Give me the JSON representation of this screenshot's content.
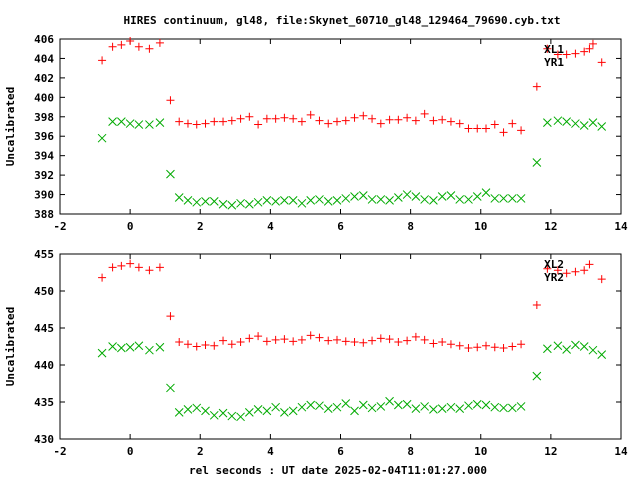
{
  "figure": {
    "title": "HIRES continuum, gl48, file:Skynet_60710_gl48_129464_79690.cyb.txt",
    "xlabel": "rel seconds : UT date 2025-02-04T11:01:27.000"
  },
  "chart_data": [
    {
      "type": "scatter",
      "ylabel": "Uncalibrated",
      "xlim": [
        -2,
        14
      ],
      "ylim": [
        388,
        406
      ],
      "xticks": [
        "-2",
        "0",
        "2",
        "4",
        "6",
        "8",
        "10",
        "12",
        "14"
      ],
      "yticks": [
        "388",
        "390",
        "392",
        "394",
        "396",
        "398",
        "400",
        "402",
        "404",
        "406"
      ],
      "grid": false,
      "legend_position": "top-right",
      "series": [
        {
          "name": "XL1",
          "marker": "plus",
          "color": "#ff0000",
          "x": [
            -0.8,
            -0.5,
            -0.25,
            0.0,
            0.25,
            0.55,
            0.85,
            1.15,
            1.4,
            1.65,
            1.9,
            2.15,
            2.4,
            2.65,
            2.9,
            3.15,
            3.4,
            3.65,
            3.9,
            4.15,
            4.4,
            4.65,
            4.9,
            5.15,
            5.4,
            5.65,
            5.9,
            6.15,
            6.4,
            6.65,
            6.9,
            7.15,
            7.4,
            7.65,
            7.9,
            8.15,
            8.4,
            8.65,
            8.9,
            9.15,
            9.4,
            9.65,
            9.9,
            10.15,
            10.4,
            10.65,
            10.9,
            11.15,
            11.6,
            11.9,
            12.2,
            12.45,
            12.7,
            12.95,
            13.1,
            13.2,
            13.45
          ],
          "y": [
            403.8,
            405.2,
            405.4,
            405.8,
            405.2,
            405.0,
            405.6,
            399.7,
            397.5,
            397.3,
            397.2,
            397.3,
            397.5,
            397.5,
            397.6,
            397.8,
            398.0,
            397.2,
            397.8,
            397.8,
            397.9,
            397.8,
            397.5,
            398.2,
            397.6,
            397.3,
            397.5,
            397.6,
            397.9,
            398.1,
            397.8,
            397.3,
            397.7,
            397.7,
            397.9,
            397.6,
            398.3,
            397.6,
            397.7,
            397.5,
            397.3,
            396.8,
            396.8,
            396.8,
            397.2,
            396.4,
            397.3,
            396.6,
            401.1,
            405.0,
            404.4,
            404.4,
            404.5,
            404.7,
            405.0,
            405.5,
            403.6
          ]
        },
        {
          "name": "YR1",
          "marker": "cross",
          "color": "#00aa00",
          "x": [
            -0.8,
            -0.5,
            -0.25,
            0.0,
            0.25,
            0.55,
            0.85,
            1.15,
            1.4,
            1.65,
            1.9,
            2.15,
            2.4,
            2.65,
            2.9,
            3.15,
            3.4,
            3.65,
            3.9,
            4.15,
            4.4,
            4.65,
            4.9,
            5.15,
            5.4,
            5.65,
            5.9,
            6.15,
            6.4,
            6.65,
            6.9,
            7.15,
            7.4,
            7.65,
            7.9,
            8.15,
            8.4,
            8.65,
            8.9,
            9.15,
            9.4,
            9.65,
            9.9,
            10.15,
            10.4,
            10.65,
            10.9,
            11.15,
            11.6,
            11.9,
            12.2,
            12.45,
            12.7,
            12.95,
            13.2,
            13.45
          ],
          "y": [
            395.8,
            397.5,
            397.5,
            397.3,
            397.2,
            397.2,
            397.4,
            392.1,
            389.7,
            389.4,
            389.2,
            389.3,
            389.3,
            389.0,
            388.9,
            389.1,
            389.0,
            389.2,
            389.4,
            389.3,
            389.4,
            389.4,
            389.1,
            389.4,
            389.5,
            389.3,
            389.4,
            389.6,
            389.8,
            389.9,
            389.5,
            389.5,
            389.4,
            389.7,
            390.0,
            389.8,
            389.5,
            389.4,
            389.8,
            389.9,
            389.5,
            389.5,
            389.8,
            390.2,
            389.6,
            389.6,
            389.6,
            389.6,
            393.3,
            397.4,
            397.6,
            397.5,
            397.3,
            397.1,
            397.4,
            397.0
          ]
        }
      ]
    },
    {
      "type": "scatter",
      "ylabel": "Uncalibrated",
      "xlim": [
        -2,
        14
      ],
      "ylim": [
        430,
        455
      ],
      "xticks": [
        "-2",
        "0",
        "2",
        "4",
        "6",
        "8",
        "10",
        "12",
        "14"
      ],
      "yticks": [
        "430",
        "435",
        "440",
        "445",
        "450",
        "455"
      ],
      "grid": false,
      "legend_position": "top-right",
      "series": [
        {
          "name": "XL2",
          "marker": "plus",
          "color": "#ff0000",
          "x": [
            -0.8,
            -0.5,
            -0.25,
            0.0,
            0.25,
            0.55,
            0.85,
            1.15,
            1.4,
            1.65,
            1.9,
            2.15,
            2.4,
            2.65,
            2.9,
            3.15,
            3.4,
            3.65,
            3.9,
            4.15,
            4.4,
            4.65,
            4.9,
            5.15,
            5.4,
            5.65,
            5.9,
            6.15,
            6.4,
            6.65,
            6.9,
            7.15,
            7.4,
            7.65,
            7.9,
            8.15,
            8.4,
            8.65,
            8.9,
            9.15,
            9.4,
            9.65,
            9.9,
            10.15,
            10.4,
            10.65,
            10.9,
            11.15,
            11.6,
            11.9,
            12.2,
            12.45,
            12.7,
            12.95,
            13.1,
            13.45
          ],
          "y": [
            451.8,
            453.2,
            453.4,
            453.7,
            453.2,
            452.8,
            453.2,
            446.6,
            443.1,
            442.8,
            442.5,
            442.7,
            442.6,
            443.3,
            442.8,
            443.1,
            443.6,
            443.9,
            443.2,
            443.4,
            443.5,
            443.2,
            443.4,
            444.0,
            443.7,
            443.3,
            443.4,
            443.2,
            443.1,
            443.0,
            443.3,
            443.6,
            443.5,
            443.1,
            443.3,
            443.8,
            443.4,
            442.9,
            443.1,
            442.8,
            442.6,
            442.3,
            442.4,
            442.6,
            442.4,
            442.3,
            442.5,
            442.8,
            448.1,
            453.0,
            452.8,
            452.4,
            452.6,
            452.8,
            453.6,
            451.6
          ]
        },
        {
          "name": "YR2",
          "marker": "cross",
          "color": "#00aa00",
          "x": [
            -0.8,
            -0.5,
            -0.25,
            0.0,
            0.25,
            0.55,
            0.85,
            1.15,
            1.4,
            1.65,
            1.9,
            2.15,
            2.4,
            2.65,
            2.9,
            3.15,
            3.4,
            3.65,
            3.9,
            4.15,
            4.4,
            4.65,
            4.9,
            5.15,
            5.4,
            5.65,
            5.9,
            6.15,
            6.4,
            6.65,
            6.9,
            7.15,
            7.4,
            7.65,
            7.9,
            8.15,
            8.4,
            8.65,
            8.9,
            9.15,
            9.4,
            9.65,
            9.9,
            10.15,
            10.4,
            10.65,
            10.9,
            11.15,
            11.6,
            11.9,
            12.2,
            12.45,
            12.7,
            12.95,
            13.2,
            13.45
          ],
          "y": [
            441.6,
            442.5,
            442.3,
            442.4,
            442.6,
            442.0,
            442.4,
            436.9,
            433.6,
            434.0,
            434.2,
            433.8,
            433.2,
            433.5,
            433.1,
            433.0,
            433.6,
            434.0,
            433.8,
            434.3,
            433.6,
            433.8,
            434.3,
            434.6,
            434.5,
            434.1,
            434.3,
            434.8,
            433.8,
            434.6,
            434.2,
            434.4,
            435.1,
            434.6,
            434.7,
            434.1,
            434.4,
            434.0,
            434.1,
            434.3,
            434.1,
            434.5,
            434.7,
            434.6,
            434.3,
            434.2,
            434.2,
            434.4,
            438.5,
            442.2,
            442.6,
            442.1,
            442.7,
            442.5,
            442.0,
            441.4
          ]
        }
      ]
    }
  ]
}
